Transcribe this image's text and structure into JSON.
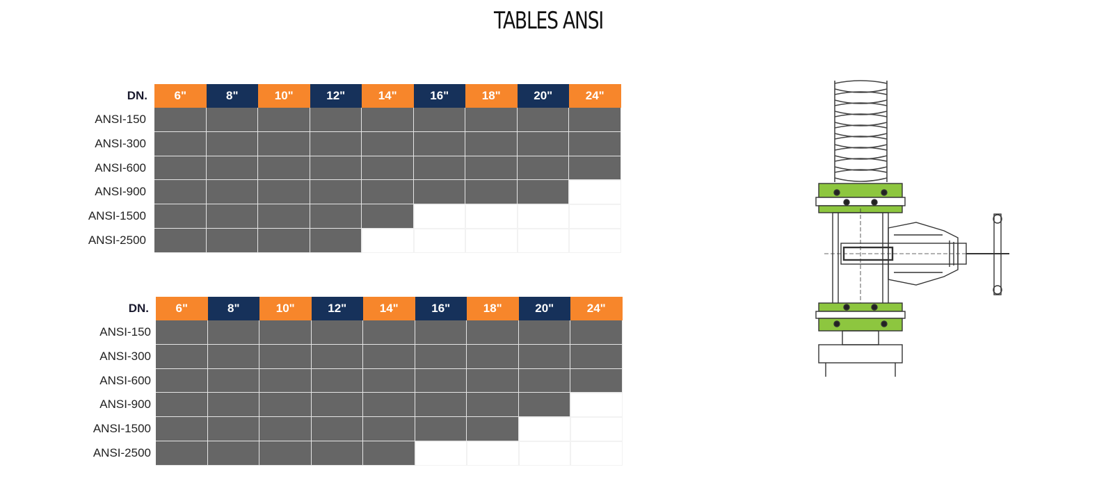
{
  "page": {
    "title": "TABLES ANSI"
  },
  "colors": {
    "header_orange": "#f7862b",
    "header_navy": "#16315a",
    "available_cell": "#666666",
    "empty_cell": "#ffffff",
    "flange_green": "#8dc63f"
  },
  "tables": [
    {
      "header_label": "DN.",
      "sizes": [
        "6\"",
        "8\"",
        "10\"",
        "12\"",
        "14\"",
        "16\"",
        "18\"",
        "20\"",
        "24\""
      ],
      "header_colors": [
        "orange",
        "navy",
        "orange",
        "navy",
        "orange",
        "navy",
        "orange",
        "navy",
        "orange"
      ],
      "rows": [
        {
          "label": "ANSI-150",
          "available_count": 9
        },
        {
          "label": "ANSI-300",
          "available_count": 9
        },
        {
          "label": "ANSI-600",
          "available_count": 9
        },
        {
          "label": "ANSI-900",
          "available_count": 8
        },
        {
          "label": "ANSI-1500",
          "available_count": 5
        },
        {
          "label": "ANSI-2500",
          "available_count": 4
        }
      ]
    },
    {
      "header_label": "DN.",
      "sizes": [
        "6\"",
        "8\"",
        "10\"",
        "12\"",
        "14\"",
        "16\"",
        "18\"",
        "20\"",
        "24\""
      ],
      "header_colors": [
        "orange",
        "navy",
        "orange",
        "navy",
        "orange",
        "navy",
        "orange",
        "navy",
        "orange"
      ],
      "rows": [
        {
          "label": "ANSI-150",
          "available_count": 9
        },
        {
          "label": "ANSI-300",
          "available_count": 9
        },
        {
          "label": "ANSI-600",
          "available_count": 9
        },
        {
          "label": "ANSI-900",
          "available_count": 8
        },
        {
          "label": "ANSI-1500",
          "available_count": 7
        },
        {
          "label": "ANSI-2500",
          "available_count": 5
        }
      ]
    }
  ],
  "illustration": {
    "icon": "gate-valve-drawing-icon"
  }
}
